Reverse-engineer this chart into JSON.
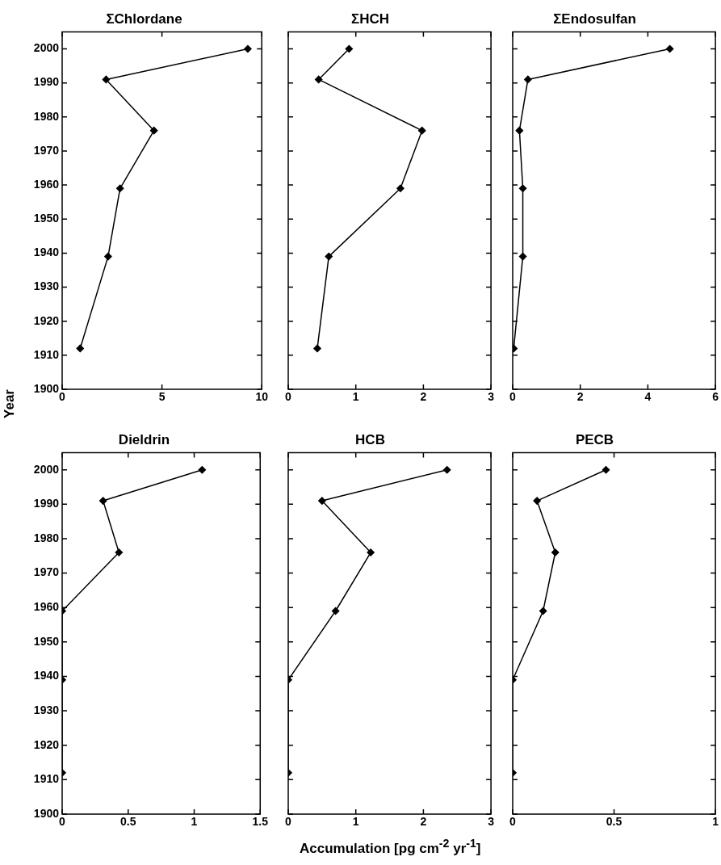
{
  "chart_data": [
    {
      "type": "line",
      "title": "ΣChlordane",
      "ylabel": "Year",
      "x": [
        9.3,
        2.2,
        4.6,
        2.9,
        2.3,
        0.9
      ],
      "values": [
        2000,
        1991,
        1976,
        1959,
        1939,
        1912
      ],
      "color": "#000000",
      "marker": "diamond",
      "xlim": [
        0,
        10
      ],
      "xticks": [
        0,
        5,
        10
      ],
      "ylim": [
        1900,
        2005
      ],
      "yticks": [
        1900,
        1910,
        1920,
        1930,
        1940,
        1950,
        1960,
        1970,
        1980,
        1990,
        2000
      ],
      "grid": false,
      "legend": false
    },
    {
      "type": "line",
      "title": "ΣHCH",
      "x": [
        0.9,
        0.45,
        1.98,
        1.66,
        0.6,
        0.43
      ],
      "values": [
        2000,
        1991,
        1976,
        1959,
        1939,
        1912
      ],
      "color": "#000000",
      "marker": "diamond",
      "xlim": [
        0,
        3
      ],
      "xticks": [
        0,
        1,
        2,
        3
      ],
      "ylim": [
        1900,
        2005
      ],
      "yticks": [
        1900,
        1910,
        1920,
        1930,
        1940,
        1950,
        1960,
        1970,
        1980,
        1990,
        2000
      ],
      "tick_labels": "x",
      "grid": false,
      "legend": false
    },
    {
      "type": "line",
      "title": "ΣEndosulfan",
      "x": [
        4.65,
        0.45,
        0.2,
        0.3,
        0.3,
        0.03
      ],
      "values": [
        2000,
        1991,
        1976,
        1959,
        1939,
        1912
      ],
      "color": "#000000",
      "marker": "diamond",
      "xlim": [
        0,
        6
      ],
      "xticks": [
        0,
        2,
        4,
        6
      ],
      "ylim": [
        1900,
        2005
      ],
      "yticks": [
        1900,
        1910,
        1920,
        1930,
        1940,
        1950,
        1960,
        1970,
        1980,
        1990,
        2000
      ],
      "tick_labels": "x",
      "grid": false,
      "legend": false
    },
    {
      "type": "line",
      "title": "Dieldrin",
      "x": [
        1.06,
        0.31,
        0.43,
        0,
        0,
        0
      ],
      "values": [
        2000,
        1991,
        1976,
        1959,
        1939,
        1912
      ],
      "color": "#000000",
      "marker": "diamond",
      "xlim": [
        0,
        1.5
      ],
      "xticks": [
        0,
        0.5,
        1,
        1.5
      ],
      "ylim": [
        1900,
        2005
      ],
      "yticks": [
        1900,
        1910,
        1920,
        1930,
        1940,
        1950,
        1960,
        1970,
        1980,
        1990,
        2000
      ],
      "grid": false,
      "legend": false
    },
    {
      "type": "line",
      "title": "HCB",
      "xlabel": "Accumulation [pg cm$^{-2}$ yr$^{-1}$]",
      "x": [
        2.35,
        0.5,
        1.22,
        0.7,
        0,
        0
      ],
      "values": [
        2000,
        1991,
        1976,
        1959,
        1939,
        1912
      ],
      "color": "#000000",
      "marker": "diamond",
      "xlim": [
        0,
        3
      ],
      "xticks": [
        0,
        1,
        2,
        3
      ],
      "ylim": [
        1900,
        2005
      ],
      "yticks": [
        1900,
        1910,
        1920,
        1930,
        1940,
        1950,
        1960,
        1970,
        1980,
        1990,
        2000
      ],
      "tick_labels": "x",
      "grid": false,
      "legend": false
    },
    {
      "type": "line",
      "title": "PECB",
      "x": [
        0.46,
        0.12,
        0.21,
        0.15,
        0,
        0
      ],
      "values": [
        2000,
        1991,
        1976,
        1959,
        1939,
        1912
      ],
      "color": "#000000",
      "marker": "diamond",
      "xlim": [
        0,
        1
      ],
      "xticks": [
        0,
        0.5,
        1
      ],
      "ylim": [
        1900,
        2005
      ],
      "yticks": [
        1900,
        1910,
        1920,
        1930,
        1940,
        1950,
        1960,
        1970,
        1980,
        1990,
        2000
      ],
      "tick_labels": "x",
      "grid": false,
      "legend": false
    }
  ]
}
